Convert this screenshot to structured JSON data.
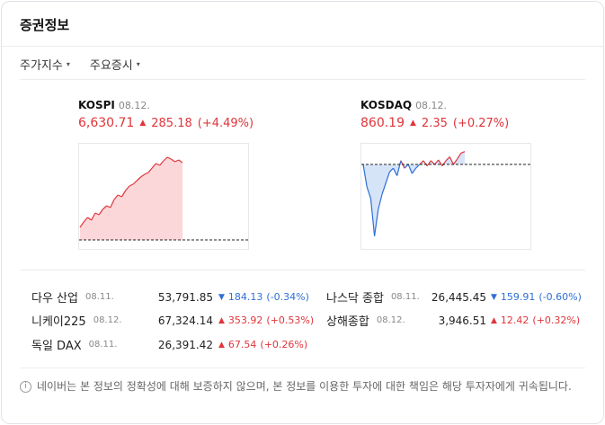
{
  "title": "증권정보",
  "tabs": [
    {
      "label": "주가지수"
    },
    {
      "label": "주요증시"
    }
  ],
  "indices": [
    {
      "name": "KOSPI",
      "date": "08.12.",
      "value": "6,630.71",
      "change": "285.18",
      "change_pct": "(+4.49%)",
      "direction": "up",
      "chart_data": {
        "type": "area",
        "series": [
          {
            "values": [
              0.14,
              0.2,
              0.25,
              0.22,
              0.3,
              0.28,
              0.34,
              0.38,
              0.36,
              0.45,
              0.5,
              0.48,
              0.55,
              0.6,
              0.62,
              0.66,
              0.7,
              0.73,
              0.75,
              0.8,
              0.85,
              0.83,
              0.88,
              0.92,
              0.9,
              0.87,
              0.89,
              0.86
            ]
          }
        ],
        "baseline": 0.0
      }
    },
    {
      "name": "KOSDAQ",
      "date": "08.12.",
      "value": "860.19",
      "change": "2.35",
      "change_pct": "(+0.27%)",
      "direction": "up",
      "chart_data": {
        "type": "area",
        "series": [
          {
            "values": [
              0.0,
              -0.3,
              -0.45,
              -0.95,
              -0.6,
              -0.4,
              -0.25,
              -0.1,
              -0.05,
              -0.15,
              0.05,
              -0.05,
              0.0,
              -0.12,
              -0.05,
              0.0,
              0.05,
              -0.02,
              0.05,
              0.0,
              0.06,
              -0.02,
              0.05,
              0.1,
              0.0,
              0.07,
              0.15,
              0.17
            ]
          }
        ],
        "baseline": 0.0
      }
    }
  ],
  "markets_left": [
    {
      "name": "다우 산업",
      "date": "08.11.",
      "value": "53,791.85",
      "change": "184.13",
      "change_pct": "(-0.34%)",
      "direction": "down"
    },
    {
      "name": "니케이225",
      "date": "08.12.",
      "value": "67,324.14",
      "change": "353.92",
      "change_pct": "(+0.53%)",
      "direction": "up"
    },
    {
      "name": "독일 DAX",
      "date": "08.11.",
      "value": "26,391.42",
      "change": "67.54",
      "change_pct": "(+0.26%)",
      "direction": "up"
    }
  ],
  "markets_right": [
    {
      "name": "나스닥 종합",
      "date": "08.11.",
      "value": "26,445.45",
      "change": "159.91",
      "change_pct": "(-0.60%)",
      "direction": "down"
    },
    {
      "name": "상해종합",
      "date": "08.12.",
      "value": "3,946.51",
      "change": "12.42",
      "change_pct": "(+0.32%)",
      "direction": "up"
    }
  ],
  "notice": "네이버는 본 정보의 정확성에 대해 보증하지 않으며, 본 정보를 이용한 투자에 대한 책임은 해당 투자자에게 귀속됩니다.",
  "colors": {
    "up": "#e0353b",
    "down": "#2f6fd6",
    "up_fill": "#fcd7d9",
    "down_fill": "#d6e4f8"
  }
}
